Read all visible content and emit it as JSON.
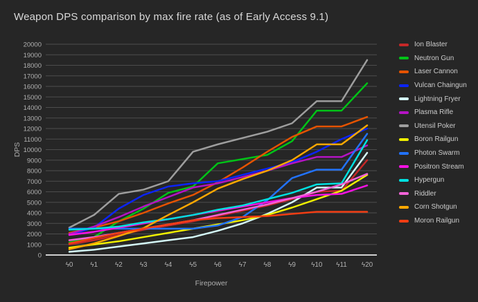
{
  "title": "Weapon DPS comparison by max fire rate (as of Early Access 9.1)",
  "colors": {
    "background": "#262626",
    "grid": "#4d4d4d",
    "axis": "#cfcfcf",
    "tick_text": "#b0b0b0",
    "title_text": "#d9d9d9",
    "legend_text": "#cccccc"
  },
  "chart_data": {
    "type": "line",
    "title": "Weapon DPS comparison by max fire rate (as of Early Access 9.1)",
    "xlabel": "Firepower",
    "ylabel": "DPS",
    "ylim": [
      0,
      20000
    ],
    "ytick_step": 1000,
    "grid": "horizontal-only",
    "legend_position": "right",
    "categories": [
      "ϟ0",
      "ϟ1",
      "ϟ2",
      "ϟ3",
      "ϟ4",
      "ϟ5",
      "ϟ6",
      "ϟ7",
      "ϟ8",
      "ϟ9",
      "ϟ10",
      "ϟ11",
      "ϟ20"
    ],
    "series": [
      {
        "name": "Ion Blaster",
        "color": "#c62828",
        "values": [
          1000,
          1400,
          1900,
          2400,
          2800,
          3200,
          3700,
          4200,
          4700,
          5300,
          6000,
          6100,
          9000
        ]
      },
      {
        "name": "Neutron Gun",
        "color": "#00c317",
        "values": [
          1200,
          1700,
          3200,
          4400,
          5900,
          6500,
          8700,
          9100,
          9500,
          10800,
          13700,
          13700,
          16300
        ]
      },
      {
        "name": "Laser Cannon",
        "color": "#e55300",
        "values": [
          2100,
          2600,
          3200,
          4000,
          4900,
          5700,
          6900,
          8300,
          9800,
          11200,
          12200,
          12200,
          13100
        ]
      },
      {
        "name": "Vulcan Chaingun",
        "color": "#0b24fb",
        "values": [
          1900,
          2600,
          4400,
          5700,
          6500,
          6800,
          7000,
          7600,
          8200,
          8800,
          9800,
          11000,
          12000
        ]
      },
      {
        "name": "Lightning Fryer",
        "color": "#d4f7f7",
        "values": [
          300,
          500,
          800,
          1100,
          1400,
          1700,
          2300,
          3000,
          3900,
          5000,
          6400,
          6400,
          9700
        ]
      },
      {
        "name": "Plasma Rifle",
        "color": "#b413c4",
        "values": [
          2000,
          2700,
          3600,
          4600,
          5500,
          6400,
          6800,
          7400,
          8000,
          8700,
          9300,
          9300,
          10400
        ]
      },
      {
        "name": "Utensil Poker",
        "color": "#9e9e9e",
        "values": [
          2600,
          3800,
          5800,
          6200,
          7000,
          9800,
          10500,
          11100,
          11700,
          12500,
          14600,
          14600,
          18500
        ]
      },
      {
        "name": "Boron Railgun",
        "color": "#f0f000",
        "values": [
          700,
          1000,
          1300,
          1700,
          2100,
          2500,
          2900,
          3300,
          3800,
          4500,
          5300,
          6100,
          7600
        ]
      },
      {
        "name": "Photon Swarm",
        "color": "#2273ff",
        "values": [
          2500,
          2500,
          2500,
          2500,
          2500,
          2500,
          2800,
          3600,
          5200,
          7300,
          8100,
          8100,
          11500
        ]
      },
      {
        "name": "Positron Stream",
        "color": "#f711e4",
        "values": [
          1900,
          2200,
          2600,
          3000,
          3400,
          3800,
          4200,
          4600,
          5000,
          5400,
          5700,
          5800,
          6600
        ]
      },
      {
        "name": "Hypergun",
        "color": "#00e0e0",
        "values": [
          2400,
          2500,
          2700,
          3100,
          3400,
          3800,
          4300,
          4700,
          5300,
          5900,
          6700,
          6800,
          10900
        ]
      },
      {
        "name": "Riddler",
        "color": "#f263d8",
        "values": [
          1400,
          1700,
          2100,
          2500,
          2900,
          3300,
          3800,
          4300,
          4800,
          5400,
          6000,
          6700,
          7700
        ]
      },
      {
        "name": "Corn Shotgun",
        "color": "#ffa800",
        "values": [
          550,
          1100,
          1800,
          2550,
          3800,
          5000,
          6300,
          7200,
          8000,
          9000,
          10500,
          10500,
          12300
        ]
      },
      {
        "name": "Moron Railgun",
        "color": "#f23d13",
        "values": [
          1100,
          1600,
          2100,
          2500,
          2900,
          3300,
          3500,
          3600,
          3700,
          3900,
          4100,
          4100,
          4100
        ]
      }
    ]
  }
}
